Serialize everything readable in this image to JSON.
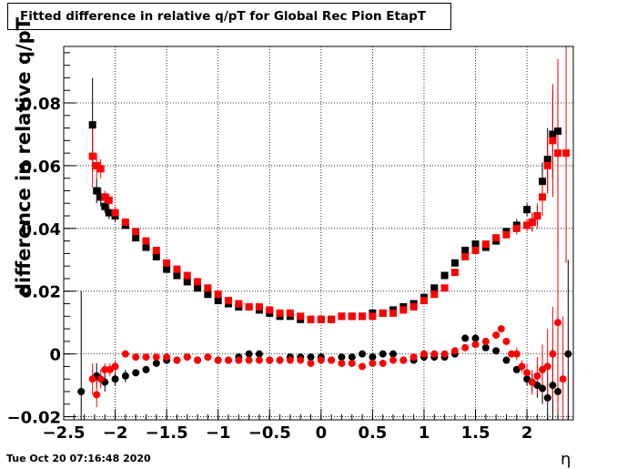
{
  "chart_data": {
    "type": "scatter",
    "title": "Fitted difference in relative q/pT for Global Rec Pion EtapT",
    "xlabel": "η",
    "ylabel": "difference in relative q/pT",
    "xlim": [
      -2.5,
      2.45
    ],
    "ylim": [
      -0.021,
      0.098
    ],
    "xticks": [
      -2.5,
      -2,
      -1.5,
      -1,
      -0.5,
      0,
      0.5,
      1,
      1.5,
      2
    ],
    "xtick_labels": [
      "−2.5",
      "−2",
      "−1.5",
      "−1",
      "−0.5",
      "0",
      "0.5",
      "1",
      "1.5",
      "2"
    ],
    "yticks": [
      -0.02,
      0,
      0.02,
      0.04,
      0.06,
      0.08
    ],
    "ytick_labels": [
      "−0.02",
      "0",
      "0.02",
      "0.04",
      "0.06",
      "0.08"
    ],
    "grid": true,
    "series": [
      {
        "color": "#000000",
        "marker": "square",
        "x": [
          -2.22,
          -2.18,
          -2.14,
          -2.1,
          -2.06,
          -2.0,
          -1.9,
          -1.8,
          -1.7,
          -1.6,
          -1.5,
          -1.4,
          -1.3,
          -1.2,
          -1.1,
          -1.0,
          -0.9,
          -0.8,
          -0.7,
          -0.6,
          -0.5,
          -0.4,
          -0.3,
          -0.2,
          -0.1,
          0.0,
          0.1,
          0.2,
          0.3,
          0.4,
          0.5,
          0.6,
          0.7,
          0.8,
          0.9,
          1.0,
          1.1,
          1.2,
          1.3,
          1.4,
          1.5,
          1.6,
          1.7,
          1.8,
          1.9,
          2.0,
          2.05,
          2.1,
          2.15,
          2.2,
          2.25,
          2.3
        ],
        "y": [
          0.073,
          0.052,
          0.05,
          0.047,
          0.045,
          0.044,
          0.041,
          0.037,
          0.034,
          0.031,
          0.027,
          0.025,
          0.023,
          0.021,
          0.019,
          0.017,
          0.016,
          0.015,
          0.015,
          0.014,
          0.013,
          0.012,
          0.012,
          0.011,
          0.011,
          0.011,
          0.011,
          0.012,
          0.012,
          0.012,
          0.013,
          0.013,
          0.014,
          0.015,
          0.016,
          0.018,
          0.021,
          0.025,
          0.029,
          0.033,
          0.035,
          0.034,
          0.036,
          0.039,
          0.041,
          0.046,
          0.042,
          0.044,
          0.055,
          0.062,
          0.07,
          0.071
        ],
        "yerr": [
          0.015,
          0.004,
          0.003,
          0.002,
          0.002,
          0.002,
          0.001,
          0.001,
          0.001,
          0.001,
          0.001,
          0.001,
          0.001,
          0.001,
          0.001,
          0.001,
          0.001,
          0.001,
          0.001,
          0.001,
          0.001,
          0.001,
          0.001,
          0.001,
          0.001,
          0.001,
          0.001,
          0.001,
          0.001,
          0.001,
          0.001,
          0.001,
          0.001,
          0.001,
          0.001,
          0.001,
          0.001,
          0.001,
          0.001,
          0.001,
          0.001,
          0.001,
          0.001,
          0.001,
          0.002,
          0.002,
          0.003,
          0.003,
          0.006,
          0.01,
          0.014,
          0.02
        ]
      },
      {
        "color": "#ff0000",
        "marker": "square",
        "x": [
          -2.22,
          -2.18,
          -2.14,
          -2.1,
          -2.06,
          -2.0,
          -1.9,
          -1.8,
          -1.7,
          -1.6,
          -1.5,
          -1.4,
          -1.3,
          -1.2,
          -1.1,
          -1.0,
          -0.9,
          -0.8,
          -0.7,
          -0.6,
          -0.5,
          -0.4,
          -0.3,
          -0.2,
          -0.1,
          0.0,
          0.1,
          0.2,
          0.3,
          0.4,
          0.5,
          0.6,
          0.7,
          0.8,
          0.9,
          1.0,
          1.1,
          1.2,
          1.3,
          1.4,
          1.5,
          1.6,
          1.7,
          1.8,
          1.9,
          2.0,
          2.05,
          2.1,
          2.15,
          2.2,
          2.25,
          2.3,
          2.38
        ],
        "y": [
          0.063,
          0.06,
          0.059,
          0.05,
          0.049,
          0.045,
          0.042,
          0.039,
          0.036,
          0.033,
          0.029,
          0.027,
          0.025,
          0.023,
          0.021,
          0.019,
          0.017,
          0.016,
          0.015,
          0.015,
          0.014,
          0.013,
          0.013,
          0.012,
          0.011,
          0.011,
          0.011,
          0.012,
          0.012,
          0.012,
          0.012,
          0.013,
          0.013,
          0.014,
          0.015,
          0.017,
          0.019,
          0.021,
          0.026,
          0.031,
          0.033,
          0.035,
          0.037,
          0.038,
          0.04,
          0.041,
          0.042,
          0.044,
          0.05,
          0.06,
          0.068,
          0.064,
          0.064
        ],
        "yerr": [
          0.01,
          0.004,
          0.003,
          0.002,
          0.002,
          0.002,
          0.001,
          0.001,
          0.001,
          0.001,
          0.001,
          0.001,
          0.001,
          0.001,
          0.001,
          0.001,
          0.001,
          0.001,
          0.001,
          0.001,
          0.001,
          0.001,
          0.001,
          0.001,
          0.001,
          0.001,
          0.001,
          0.001,
          0.001,
          0.001,
          0.001,
          0.001,
          0.001,
          0.001,
          0.001,
          0.001,
          0.001,
          0.001,
          0.001,
          0.001,
          0.001,
          0.001,
          0.001,
          0.001,
          0.002,
          0.002,
          0.003,
          0.004,
          0.006,
          0.009,
          0.018,
          0.03,
          0.035
        ]
      },
      {
        "color": "#000000",
        "marker": "circle",
        "x": [
          -2.33,
          -2.18,
          -2.1,
          -2.0,
          -1.9,
          -1.8,
          -1.7,
          -1.6,
          -1.5,
          -1.4,
          -1.3,
          -1.2,
          -1.1,
          -1.0,
          -0.9,
          -0.8,
          -0.7,
          -0.6,
          -0.5,
          -0.4,
          -0.3,
          -0.2,
          -0.1,
          0.0,
          0.1,
          0.2,
          0.3,
          0.4,
          0.5,
          0.6,
          0.7,
          0.8,
          0.9,
          1.0,
          1.1,
          1.2,
          1.3,
          1.4,
          1.5,
          1.6,
          1.7,
          1.8,
          1.9,
          2.0,
          2.05,
          2.1,
          2.15,
          2.2,
          2.25,
          2.3,
          2.4
        ],
        "y": [
          -0.012,
          -0.007,
          -0.009,
          -0.008,
          -0.007,
          -0.006,
          -0.005,
          -0.003,
          -0.002,
          -0.002,
          -0.001,
          -0.002,
          -0.001,
          -0.002,
          -0.002,
          -0.001,
          0.0,
          0.0,
          -0.002,
          -0.002,
          -0.001,
          -0.001,
          -0.001,
          -0.001,
          -0.002,
          -0.001,
          -0.001,
          0.0,
          -0.001,
          0.0,
          0.0,
          -0.002,
          -0.002,
          -0.001,
          -0.001,
          -0.001,
          0.0,
          0.005,
          0.005,
          0.002,
          0.001,
          -0.002,
          -0.005,
          -0.008,
          -0.009,
          -0.01,
          -0.011,
          -0.014,
          -0.01,
          -0.012,
          0.0
        ],
        "yerr": [
          0.032,
          0.004,
          0.003,
          0.002,
          0.002,
          0.001,
          0.001,
          0.001,
          0.001,
          0.001,
          0.001,
          0.001,
          0.001,
          0.001,
          0.001,
          0.001,
          0.001,
          0.001,
          0.001,
          0.001,
          0.001,
          0.001,
          0.001,
          0.001,
          0.001,
          0.001,
          0.001,
          0.001,
          0.001,
          0.001,
          0.001,
          0.001,
          0.001,
          0.001,
          0.001,
          0.001,
          0.001,
          0.001,
          0.001,
          0.001,
          0.001,
          0.001,
          0.001,
          0.002,
          0.003,
          0.004,
          0.005,
          0.008,
          0.012,
          0.02,
          0.03
        ]
      },
      {
        "color": "#ff0000",
        "marker": "circle",
        "x": [
          -2.22,
          -2.18,
          -2.14,
          -2.1,
          -2.05,
          -2.0,
          -1.9,
          -1.8,
          -1.7,
          -1.6,
          -1.5,
          -1.4,
          -1.3,
          -1.2,
          -1.1,
          -1.0,
          -0.9,
          -0.8,
          -0.7,
          -0.6,
          -0.5,
          -0.4,
          -0.3,
          -0.2,
          -0.1,
          0.0,
          0.1,
          0.2,
          0.3,
          0.4,
          0.5,
          0.6,
          0.7,
          0.8,
          0.9,
          1.0,
          1.1,
          1.2,
          1.3,
          1.4,
          1.5,
          1.6,
          1.7,
          1.75,
          1.8,
          1.85,
          1.9,
          1.95,
          2.0,
          2.05,
          2.1,
          2.15,
          2.2,
          2.25,
          2.3,
          2.35
        ],
        "y": [
          -0.008,
          -0.013,
          -0.008,
          -0.005,
          -0.005,
          -0.004,
          0.0,
          -0.001,
          -0.001,
          -0.001,
          -0.001,
          -0.002,
          -0.001,
          -0.002,
          -0.001,
          -0.002,
          -0.002,
          -0.002,
          -0.002,
          -0.002,
          -0.002,
          -0.002,
          -0.002,
          -0.002,
          -0.003,
          -0.002,
          -0.002,
          -0.003,
          -0.003,
          -0.004,
          -0.003,
          -0.003,
          -0.002,
          -0.002,
          -0.001,
          0.0,
          0.0,
          0.0,
          0.001,
          0.002,
          0.003,
          0.004,
          0.006,
          0.008,
          0.004,
          0.0,
          0.0,
          -0.004,
          -0.006,
          -0.009,
          -0.007,
          -0.005,
          -0.004,
          0.0,
          0.01,
          -0.008
        ],
        "yerr": [
          0.005,
          0.004,
          0.003,
          0.002,
          0.002,
          0.002,
          0.001,
          0.001,
          0.001,
          0.001,
          0.001,
          0.001,
          0.001,
          0.001,
          0.001,
          0.001,
          0.001,
          0.001,
          0.001,
          0.001,
          0.001,
          0.001,
          0.001,
          0.001,
          0.001,
          0.001,
          0.001,
          0.001,
          0.001,
          0.001,
          0.001,
          0.001,
          0.001,
          0.001,
          0.001,
          0.001,
          0.001,
          0.001,
          0.001,
          0.001,
          0.001,
          0.001,
          0.001,
          0.001,
          0.001,
          0.001,
          0.002,
          0.002,
          0.003,
          0.004,
          0.006,
          0.008,
          0.012,
          0.015,
          0.03,
          0.02
        ]
      }
    ]
  },
  "footer": {
    "timestamp": "Tue Oct 20 07:16:48 2020"
  }
}
